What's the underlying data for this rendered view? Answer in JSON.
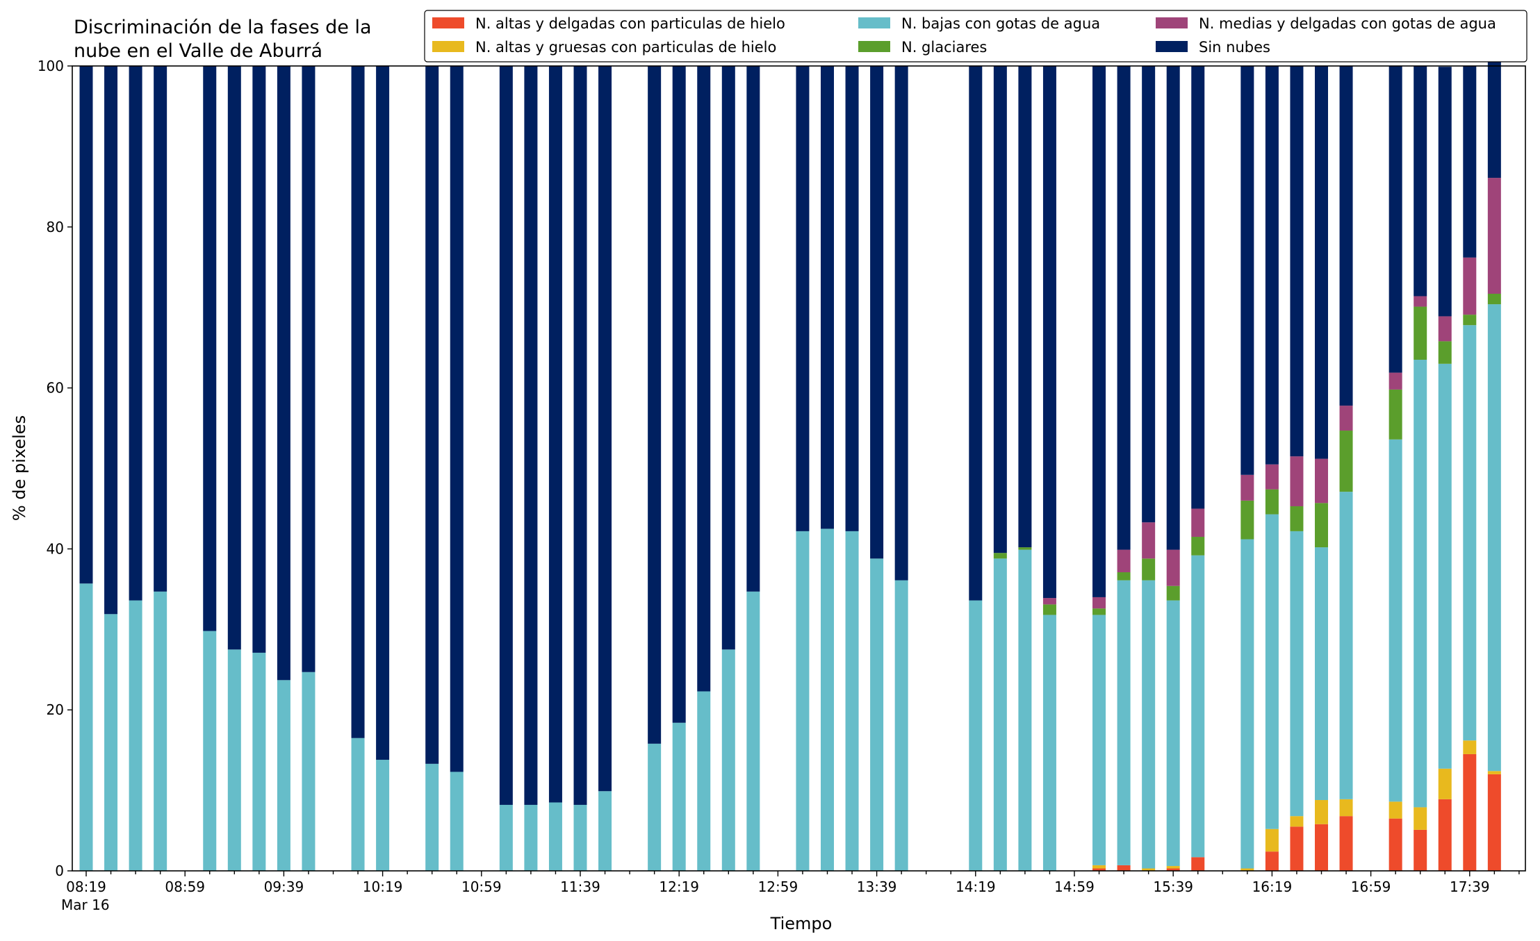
{
  "chart_data": {
    "type": "bar",
    "stacked": true,
    "title_line1": "Discriminación de la fases de la",
    "title_line2": "nube en el Valle de Aburrá",
    "xlabel": "Tiempo",
    "ylabel": "% de pixeles",
    "ylim": [
      0,
      100
    ],
    "yticks": [
      "0",
      "20",
      "40",
      "60",
      "80",
      "100"
    ],
    "date_label": "Mar 16",
    "xticks": [
      "08:19",
      "08:59",
      "09:39",
      "10:19",
      "10:59",
      "11:39",
      "12:19",
      "12:59",
      "13:39",
      "14:19",
      "14:59",
      "15:39",
      "16:19",
      "16:59",
      "17:39"
    ],
    "legend_position": "top-right",
    "categories": [
      "08:19",
      "08:29",
      "08:39",
      "08:49",
      "09:09",
      "09:19",
      "09:29",
      "09:39",
      "09:49",
      "10:09",
      "10:19",
      "10:39",
      "10:49",
      "11:09",
      "11:19",
      "11:29",
      "11:39",
      "11:49",
      "12:09",
      "12:19",
      "12:29",
      "12:39",
      "12:49",
      "13:09",
      "13:19",
      "13:29",
      "13:39",
      "13:49",
      "14:19",
      "14:29",
      "14:39",
      "14:49",
      "15:09",
      "15:19",
      "15:29",
      "15:39",
      "15:49",
      "16:09",
      "16:19",
      "16:29",
      "16:39",
      "16:49",
      "17:09",
      "17:19",
      "17:29",
      "17:39",
      "17:49"
    ],
    "series": [
      {
        "name": "N. altas y delgadas con particulas de hielo",
        "color": "#ee4b2b",
        "values": [
          0,
          0,
          0,
          0,
          0,
          0,
          0,
          0,
          0,
          0,
          0,
          0,
          0,
          0,
          0,
          0,
          0,
          0,
          0,
          0,
          0,
          0,
          0,
          0,
          0,
          0,
          0,
          0,
          0,
          0,
          0,
          0,
          0.3,
          0.7,
          0,
          0.3,
          1.7,
          0,
          2.4,
          5.5,
          5.8,
          6.8,
          6.5,
          5.1,
          8.9,
          14.5,
          12.0
        ]
      },
      {
        "name": "N. altas y gruesas con particulas de hielo",
        "color": "#e8b91e",
        "values": [
          0,
          0,
          0,
          0,
          0,
          0,
          0,
          0,
          0,
          0,
          0,
          0,
          0,
          0,
          0,
          0,
          0,
          0,
          0,
          0,
          0,
          0,
          0,
          0,
          0,
          0,
          0,
          0,
          0,
          0,
          0,
          0,
          0.4,
          0,
          0.3,
          0.3,
          0,
          0.3,
          2.8,
          1.3,
          3.0,
          2.1,
          2.1,
          2.8,
          3.8,
          1.7,
          0.4
        ]
      },
      {
        "name": "N. bajas con gotas de agua",
        "color": "#66bdc9",
        "values": [
          35.7,
          31.9,
          33.6,
          34.7,
          29.8,
          27.5,
          27.1,
          23.7,
          24.7,
          16.5,
          13.8,
          13.3,
          12.3,
          8.2,
          8.2,
          8.5,
          8.2,
          9.9,
          15.8,
          18.4,
          22.3,
          27.5,
          34.7,
          42.2,
          42.5,
          42.2,
          38.8,
          36.1,
          33.6,
          38.8,
          39.9,
          31.8,
          31.1,
          35.4,
          35.8,
          33.0,
          37.5,
          40.9,
          39.1,
          35.4,
          31.4,
          38.2,
          45.0,
          55.6,
          50.3,
          51.6,
          58.0
        ]
      },
      {
        "name": "N. glaciares",
        "color": "#5b9e2c",
        "values": [
          0,
          0,
          0,
          0,
          0,
          0,
          0,
          0,
          0,
          0,
          0,
          0,
          0,
          0,
          0,
          0,
          0,
          0,
          0,
          0,
          0,
          0,
          0,
          0,
          0,
          0,
          0,
          0,
          0,
          0.7,
          0.3,
          1.3,
          0.8,
          1.0,
          2.7,
          1.8,
          2.3,
          4.8,
          3.1,
          3.1,
          5.5,
          7.6,
          6.2,
          6.6,
          2.8,
          1.3,
          1.3
        ]
      },
      {
        "name": "N. medias y delgadas con gotas de agua",
        "color": "#9f4479",
        "values": [
          0,
          0,
          0,
          0,
          0,
          0,
          0,
          0,
          0,
          0,
          0,
          0,
          0,
          0,
          0,
          0,
          0,
          0,
          0,
          0,
          0,
          0,
          0,
          0,
          0,
          0,
          0,
          0,
          0,
          0,
          0,
          0.8,
          1.4,
          2.8,
          4.5,
          4.5,
          3.5,
          3.2,
          3.1,
          6.2,
          5.5,
          3.1,
          2.1,
          1.3,
          3.1,
          7.1,
          14.4
        ]
      },
      {
        "name": "Sin nubes",
        "color": "#002060",
        "values": [
          64.3,
          68.1,
          66.4,
          65.3,
          70.2,
          72.5,
          72.9,
          76.3,
          75.3,
          83.5,
          86.2,
          86.7,
          87.7,
          91.8,
          91.8,
          91.5,
          91.8,
          90.1,
          84.2,
          81.6,
          77.7,
          72.5,
          65.3,
          57.8,
          57.5,
          57.8,
          61.2,
          63.9,
          66.4,
          60.5,
          59.8,
          66.1,
          66.0,
          60.1,
          56.7,
          60.1,
          55.0,
          50.8,
          49.5,
          48.5,
          48.8,
          42.2,
          38.1,
          28.6,
          31.0,
          23.8,
          15.0
        ]
      }
    ]
  }
}
